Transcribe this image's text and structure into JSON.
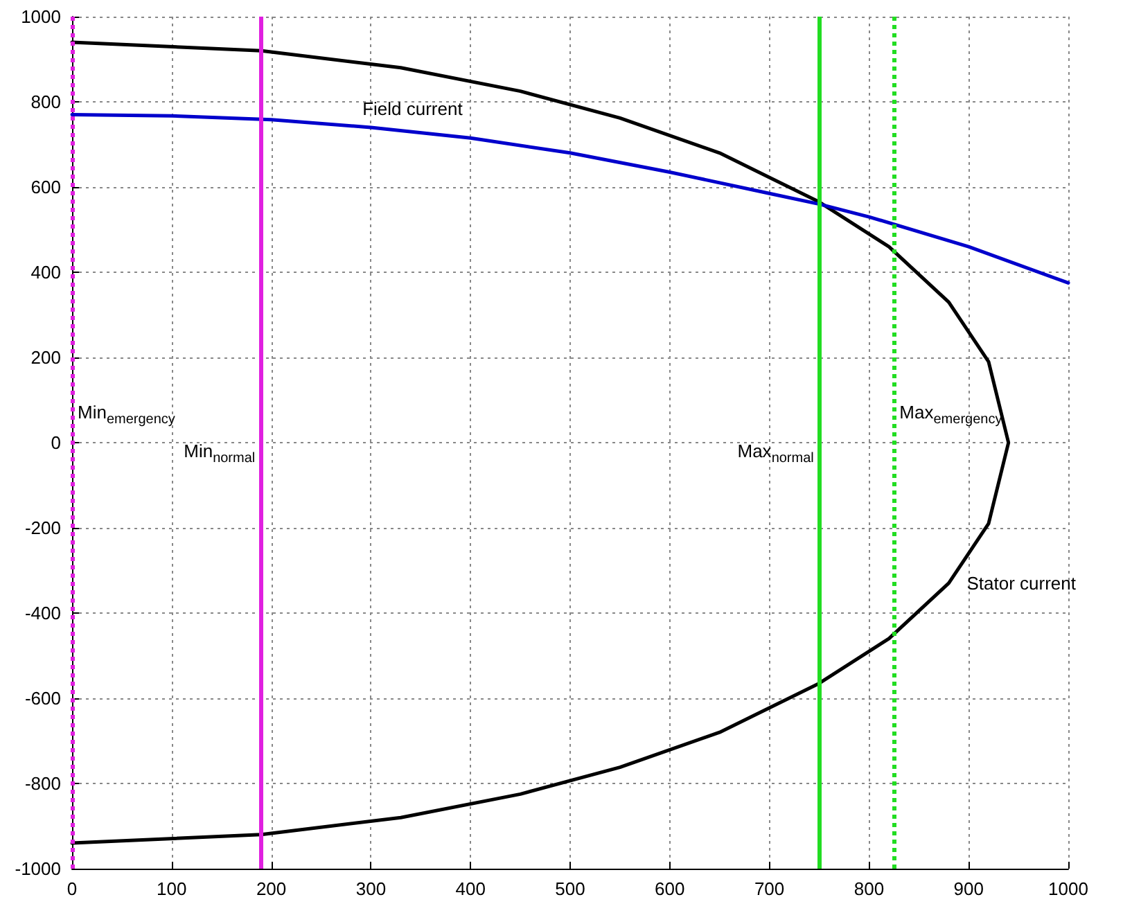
{
  "chart_data": {
    "type": "line",
    "xlim": [
      0,
      1000
    ],
    "ylim": [
      -1000,
      1000
    ],
    "xticks": [
      0,
      100,
      200,
      300,
      400,
      500,
      600,
      700,
      800,
      900,
      1000
    ],
    "yticks": [
      -1000,
      -800,
      -600,
      -400,
      -200,
      0,
      200,
      400,
      600,
      800,
      1000
    ],
    "grid": true,
    "marker": "none",
    "line_style": "solid",
    "series": [
      {
        "name": "Stator current",
        "color": "#000000",
        "x": [
          0,
          190,
          330,
          450,
          550,
          650,
          750,
          820,
          880,
          920,
          940,
          920,
          880,
          820,
          750,
          650,
          550,
          450,
          330,
          190,
          0
        ],
        "values": [
          940,
          920,
          880,
          825,
          762,
          680,
          565,
          460,
          330,
          190,
          0,
          -190,
          -330,
          -460,
          -565,
          -680,
          -762,
          -825,
          -880,
          -920,
          -940
        ]
      },
      {
        "name": "Field current",
        "color": "#0000cc",
        "x": [
          0,
          100,
          200,
          300,
          400,
          500,
          600,
          700,
          750,
          800,
          900,
          1000
        ],
        "values": [
          770,
          767,
          758,
          740,
          715,
          680,
          635,
          585,
          560,
          530,
          460,
          375
        ]
      }
    ],
    "ref_lines": [
      {
        "axis": "x",
        "value": 0,
        "label": "Min$_{emergency}$",
        "color": "#e020e0",
        "line_style": "dotted"
      },
      {
        "axis": "x",
        "value": 190,
        "label": "Min$_{normal}$",
        "color": "#e020e0",
        "line_style": "solid"
      },
      {
        "axis": "x",
        "value": 750,
        "label": "Max$_{normal}$",
        "color": "#22dd22",
        "line_style": "solid"
      },
      {
        "axis": "x",
        "value": 825,
        "label": "Max$_{emergency}$",
        "color": "#22dd22",
        "line_style": "dotted"
      }
    ]
  }
}
